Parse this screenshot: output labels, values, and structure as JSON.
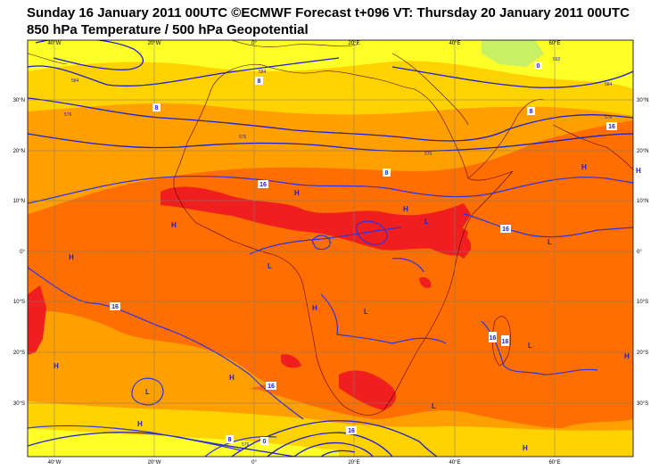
{
  "title": {
    "line1": "Sunday 16 January 2011 00UTC ©ECMWF Forecast t+096 VT: Thursday 20 January 2011 00UTC",
    "line2": "850 hPa Temperature / 500 hPa Geopotential"
  },
  "axes": {
    "lon_labels": [
      "40°W",
      "20°W",
      "0°",
      "20°E",
      "40°E",
      "60°E"
    ],
    "lat_labels": [
      "30°N",
      "20°N",
      "10°N",
      "0°",
      "10°S",
      "20°S",
      "30°S"
    ]
  },
  "pressure_centres": [
    {
      "label": "H"
    },
    {
      "label": "H"
    },
    {
      "label": "H"
    },
    {
      "label": "H"
    },
    {
      "label": "H"
    },
    {
      "label": "H"
    },
    {
      "label": "H"
    },
    {
      "label": "H"
    },
    {
      "label": "H"
    },
    {
      "label": "H"
    },
    {
      "label": "H"
    },
    {
      "label": "H"
    },
    {
      "label": "L"
    },
    {
      "label": "L"
    },
    {
      "label": "L"
    },
    {
      "label": "L"
    },
    {
      "label": "L"
    },
    {
      "label": "L"
    },
    {
      "label": "L"
    }
  ],
  "temperature_labels": [
    "8",
    "8",
    "8",
    "8",
    "16",
    "16",
    "16",
    "16",
    "16",
    "16",
    "16",
    "0",
    "0",
    "8",
    "16"
  ],
  "geopotential_labels": [
    "584",
    "584",
    "576",
    "576",
    "576",
    "584",
    "576",
    "576",
    "592"
  ],
  "colors": {
    "lightgreen": "#c8f064",
    "yellow": "#ffff28",
    "lightorange": "#ffd200",
    "orange": "#ffa000",
    "darkorange": "#ff6e00",
    "red": "#f01e1e",
    "contour": "#1e1ec8",
    "coast": "#5a0000"
  }
}
